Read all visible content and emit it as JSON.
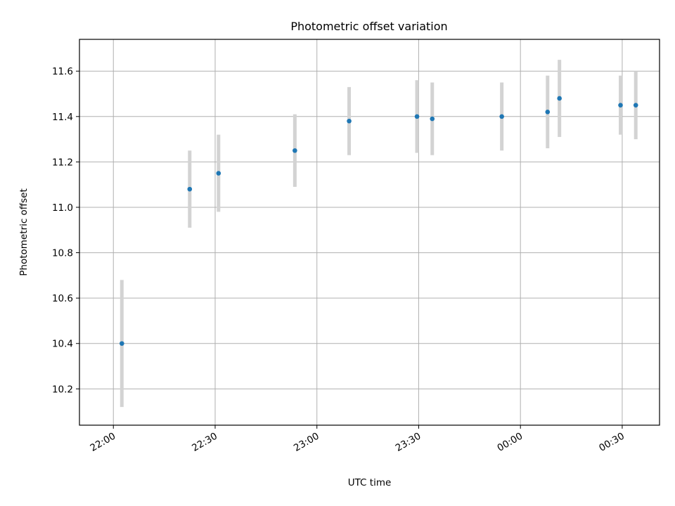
{
  "chart_data": {
    "type": "scatter",
    "title": "Photometric offset variation",
    "xlabel": "UTC time",
    "ylabel": "Photometric offset",
    "x_axis": {
      "kind": "time",
      "start": "21:50",
      "end": "00:41",
      "ticks": [
        "22:00",
        "22:30",
        "23:00",
        "23:30",
        "00:00",
        "00:30"
      ]
    },
    "y_axis": {
      "ylim": [
        10.04,
        11.74
      ],
      "ticks": [
        "10.2",
        "10.4",
        "10.6",
        "10.8",
        "11.0",
        "11.2",
        "11.4",
        "11.6"
      ]
    },
    "grid": true,
    "marker_color": "#1f77b4",
    "errorbar_color": "#d3d3d3",
    "points": [
      {
        "time": "22:02:30",
        "y": 10.4,
        "err": 0.28
      },
      {
        "time": "22:22:30",
        "y": 11.08,
        "err": 0.17
      },
      {
        "time": "22:31:00",
        "y": 11.15,
        "err": 0.17
      },
      {
        "time": "22:53:30",
        "y": 11.25,
        "err": 0.16
      },
      {
        "time": "23:09:30",
        "y": 11.38,
        "err": 0.15
      },
      {
        "time": "23:29:30",
        "y": 11.4,
        "err": 0.16
      },
      {
        "time": "23:34:00",
        "y": 11.39,
        "err": 0.16
      },
      {
        "time": "23:54:30",
        "y": 11.4,
        "err": 0.15
      },
      {
        "time": "00:08:00",
        "y": 11.42,
        "err": 0.16
      },
      {
        "time": "00:11:30",
        "y": 11.48,
        "err": 0.17
      },
      {
        "time": "00:29:30",
        "y": 11.45,
        "err": 0.13
      },
      {
        "time": "00:34:00",
        "y": 11.45,
        "err": 0.15
      }
    ]
  }
}
